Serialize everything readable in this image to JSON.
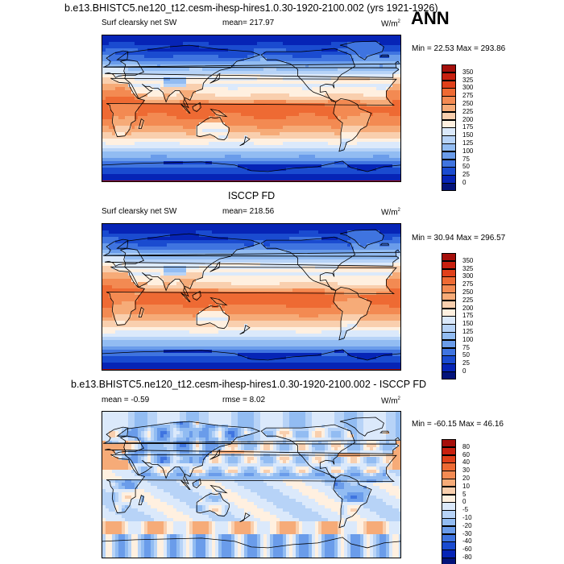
{
  "header": {
    "title": "b.e13.BHISTC5.ne120_t12.cesm-ihesp-hires1.0.30-1920-2100.002 (yrs 1921-1926)",
    "season": "ANN"
  },
  "panels": [
    {
      "id": "model",
      "subtitle": "",
      "left_label": "Surf clearsky net SW",
      "center_label": "mean= 217.97",
      "units_label": "W/m",
      "units_sup": "2",
      "minmax": "Min =  22.53 Max = 293.86",
      "colorbar_levels": [
        "350",
        "325",
        "300",
        "275",
        "250",
        "225",
        "200",
        "175",
        "150",
        "125",
        "100",
        "75",
        "50",
        "25",
        "0"
      ],
      "colorbar_colors": [
        "#a50f0b",
        "#c8200f",
        "#e0401a",
        "#ee6a33",
        "#f38a52",
        "#f6ab78",
        "#f9cfae",
        "#fff0e0",
        "#dbe9fb",
        "#b7d3f7",
        "#92bcf2",
        "#6a9cea",
        "#3f74e0",
        "#1a4bd0",
        "#0624b6",
        "#03137a"
      ],
      "field": "sw_model"
    },
    {
      "id": "obs",
      "subtitle": "ISCCP FD",
      "left_label": "Surf clearsky net SW",
      "center_label": "mean= 218.56",
      "units_label": "W/m",
      "units_sup": "2",
      "minmax": "Min =  30.94 Max = 296.57",
      "colorbar_levels": [
        "350",
        "325",
        "300",
        "275",
        "250",
        "225",
        "200",
        "175",
        "150",
        "125",
        "100",
        "75",
        "50",
        "25",
        "0"
      ],
      "colorbar_colors": [
        "#a50f0b",
        "#c8200f",
        "#e0401a",
        "#ee6a33",
        "#f38a52",
        "#f6ab78",
        "#f9cfae",
        "#fff0e0",
        "#dbe9fb",
        "#b7d3f7",
        "#92bcf2",
        "#6a9cea",
        "#3f74e0",
        "#1a4bd0",
        "#0624b6",
        "#03137a"
      ],
      "field": "sw_obs"
    },
    {
      "id": "diff",
      "subtitle": "b.e13.BHISTC5.ne120_t12.cesm-ihesp-hires1.0.30-1920-2100.002 - ISCCP FD",
      "left_label": "mean =  -0.59",
      "center_label": "rmse =   8.02",
      "units_label": "W/m",
      "units_sup": "2",
      "minmax": "Min = -60.15 Max =  46.16",
      "colorbar_levels": [
        "80",
        "60",
        "40",
        "30",
        "20",
        "10",
        "5",
        "0",
        "-5",
        "-10",
        "-20",
        "-30",
        "-40",
        "-60",
        "-80"
      ],
      "colorbar_colors": [
        "#a50f0b",
        "#c8200f",
        "#e0401a",
        "#ee6a33",
        "#f38a52",
        "#f6ab78",
        "#f9cfae",
        "#fff0e0",
        "#dbe9fb",
        "#b7d3f7",
        "#92bcf2",
        "#6a9cea",
        "#3f74e0",
        "#1a4bd0",
        "#0624b6",
        "#03137a"
      ],
      "field": "diff"
    }
  ],
  "chart_data": {
    "type": "heatmap",
    "title": "b.e13.BHISTC5.ne120_t12.cesm-ihesp-hires1.0.30-1920-2100.002 (yrs 1921-1926)",
    "season": "ANN",
    "variable": "Surf clearsky net SW",
    "units": "W/m2",
    "projection": "cylindrical equidistant, centered 180",
    "panels": [
      {
        "name": "model",
        "mean": 217.97,
        "min": 22.53,
        "max": 293.86,
        "levels": [
          0,
          25,
          50,
          75,
          100,
          125,
          150,
          175,
          200,
          225,
          250,
          275,
          300,
          325,
          350
        ]
      },
      {
        "name": "ISCCP FD",
        "mean": 218.56,
        "min": 30.94,
        "max": 296.57,
        "levels": [
          0,
          25,
          50,
          75,
          100,
          125,
          150,
          175,
          200,
          225,
          250,
          275,
          300,
          325,
          350
        ]
      },
      {
        "name": "model - ISCCP FD",
        "mean": -0.59,
        "rmse": 8.02,
        "min": -60.15,
        "max": 46.16,
        "levels": [
          -80,
          -60,
          -40,
          -30,
          -20,
          -10,
          -5,
          0,
          5,
          10,
          20,
          30,
          40,
          60,
          80
        ]
      }
    ]
  }
}
